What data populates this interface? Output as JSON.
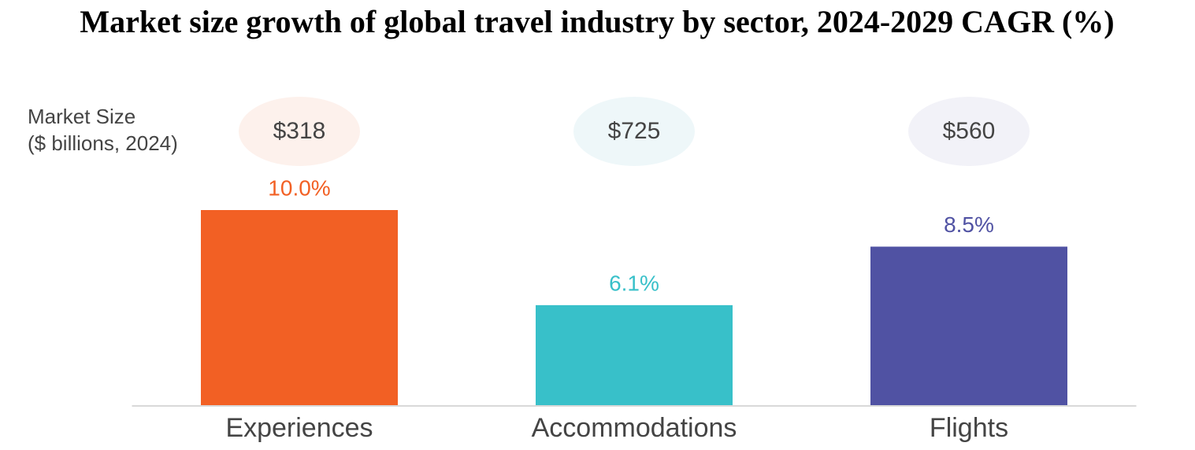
{
  "chart_data": {
    "type": "bar",
    "title": "Market size growth of global travel industry by sector, 2024-2029 CAGR (%)",
    "categories": [
      "Experiences",
      "Accommodations",
      "Flights"
    ],
    "values": [
      10.0,
      6.1,
      8.5
    ],
    "value_labels": [
      "10.0%",
      "6.1%",
      "8.5%"
    ],
    "colors": [
      "#f26024",
      "#38c0c9",
      "#5052a3"
    ],
    "ylim": [
      2,
      12
    ],
    "market_size": {
      "title": "Market Size",
      "subtitle": "($ billions, 2024)",
      "values": [
        318,
        725,
        560
      ],
      "value_labels": [
        "$318",
        "$725",
        "$560"
      ],
      "colors": [
        "#fdf1ec",
        "#eef7f9",
        "#f2f2f8"
      ]
    }
  }
}
